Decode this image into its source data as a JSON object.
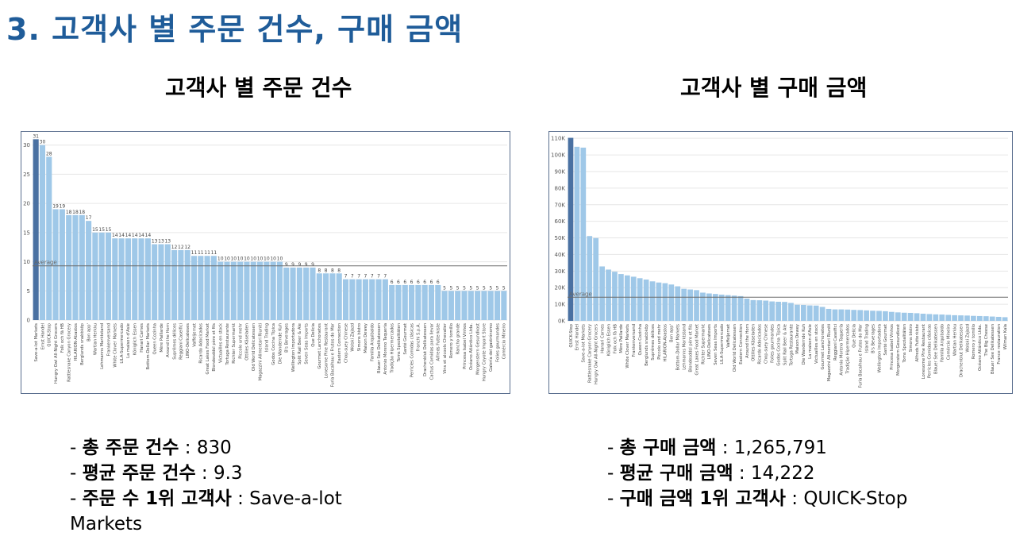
{
  "page": {
    "title": "3. 고객사 별 주문 건수, 구매 금액"
  },
  "left": {
    "chart_title": "고객사 별 주문 건수",
    "summary": [
      {
        "label": "총 주문 건수",
        "value": "830"
      },
      {
        "label": "평균 주문 건수",
        "value": "9.3"
      },
      {
        "label": "주문 수 1위 고객사",
        "value": "Save-a-lot Markets"
      }
    ]
  },
  "right": {
    "chart_title": "고객사 별 구매 금액",
    "summary": [
      {
        "label": "총 구매 금액",
        "value": "1,265,791"
      },
      {
        "label": "평균 구매 금액",
        "value": "14,222"
      },
      {
        "label": "구매 금액 1위 고객사",
        "value": "QUICK-Stop"
      }
    ]
  },
  "chart_data": [
    {
      "type": "bar",
      "title": "고객사 별 주문 건수",
      "ylim": [
        0,
        32
      ],
      "yticks": [
        0,
        5,
        10,
        15,
        20,
        25,
        30
      ],
      "ytick_labels": [
        "0",
        "5",
        "10",
        "15",
        "20",
        "25",
        "30"
      ],
      "reference_line": {
        "label": "Average",
        "value": 9.3
      },
      "highlight_index": 0,
      "colors": {
        "bar": "#9fc8e8",
        "highlight": "#4a71a2",
        "grid": "#e6e6e6"
      },
      "show_value_labels": true,
      "categories": [
        "Save-a-lot Markets",
        "Ernst Handel",
        "QUICK-Stop",
        "Hungry Owl All-Night Grocers",
        "Folk och fä HB",
        "Rattlesnake Canyon Grocery",
        "HILARION-Abastos",
        "Berglunds snabbköp",
        "Bon app'",
        "Wartian Herkku",
        "Lehmanns Marktstand",
        "Frankenversand",
        "White Clover Markets",
        "LILA-Supermercado",
        "La maison d'Asie",
        "Königlich Essen",
        "Hanari Carnes",
        "Bottom-Dollar Markets",
        "Queen Cozinha",
        "Mère Paillarde",
        "Around the Horn",
        "Suprêmes délices",
        "Reggiani Caseifici",
        "LINO-Delicateses",
        "Vaffeljernet",
        "Ricardo Adocicados",
        "Great Lakes Food Market",
        "Blondesddsl père et fils",
        "Victuailles en stock",
        "Tortuga Restaurante",
        "Richter Supermarkt",
        "Piccolo und mehr",
        "Ottilies Käseladen",
        "Old World Delicatessen",
        "Magazzini Alimentari Riuniti",
        "Island Trading",
        "Godos Cocina Típica",
        "Die Wandernde Kuh",
        "B's Beverages",
        "Wellington Importadora",
        "Split Rail Beer & Ale",
        "Seven Seas Imports",
        "Que Delícia",
        "Gourmet Lanchonetes",
        "Lonesome Pine Restaurant",
        "Furia Bacalhau e Frutos do Mar",
        "Eastern Connection",
        "Chop-suey Chinese",
        "Wolski Zajazd",
        "Simons bistro",
        "Maison Dewey",
        "Familia Arquibaldo",
        "Blauer See Delikatessen",
        "Antonio Moreno Taquería",
        "Tradição Hipermercados",
        "Toms Spezialitäten",
        "Santé Gourmet",
        "Perricles Comidas clásicas",
        "Franchi S.p.A.",
        "Drachenblut Delikatessen",
        "Cactus Comidas para llevar",
        "Alfreds Futterkiste",
        "Vins et alcools Chevalier",
        "Romero y tomillo",
        "Rancho grande",
        "Princesa Isabel Vinhos",
        "Océano Atlántico Ltda.",
        "Morgenstern Gesundkost",
        "Hungry Coyote Import Store",
        "Galería del gastrónomo",
        "Folies gourmandes",
        "Comércio Mineiro"
      ],
      "values": [
        31,
        30,
        28,
        19,
        19,
        18,
        18,
        18,
        17,
        15,
        15,
        15,
        14,
        14,
        14,
        14,
        14,
        14,
        13,
        13,
        13,
        12,
        12,
        12,
        11,
        11,
        11,
        11,
        10,
        10,
        10,
        10,
        10,
        10,
        10,
        10,
        10,
        10,
        9,
        9,
        9,
        9,
        9,
        8,
        8,
        8,
        8,
        7,
        7,
        7,
        7,
        7,
        7,
        7,
        6,
        6,
        6,
        6,
        6,
        6,
        6,
        6,
        5,
        5,
        5,
        5,
        5,
        5,
        5,
        5,
        5,
        5
      ]
    },
    {
      "type": "bar",
      "title": "고객사 별 구매 금액",
      "ylim": [
        0,
        112000
      ],
      "yticks": [
        0,
        10000,
        20000,
        30000,
        40000,
        50000,
        60000,
        70000,
        80000,
        90000,
        100000,
        110000
      ],
      "ytick_labels": [
        "0K",
        "10K",
        "20K",
        "30K",
        "40K",
        "50K",
        "60K",
        "70K",
        "80K",
        "90K",
        "100K",
        "110K"
      ],
      "reference_line": {
        "label": "Average",
        "value": 14222
      },
      "highlight_index": 0,
      "colors": {
        "bar": "#9fc8e8",
        "highlight": "#4a71a2",
        "grid": "#e6e6e6"
      },
      "show_value_labels": false,
      "categories": [
        "QUICK-Stop",
        "Ernst Handel",
        "Save-a-lot Markets",
        "Rattlesnake Canyon Grocery",
        "Hungry Owl All-Night Grocers",
        "Hanari Carnes",
        "Königlich Essen",
        "Folk och fä HB",
        "Mère Paillarde",
        "White Clover Markets",
        "Frankenversand",
        "Queen Cozinha",
        "Berglunds snabbköp",
        "Suprêmes délices",
        "Piccolo und mehr",
        "HILARION-Abastos",
        "Bon app'",
        "Bottom-Dollar Markets",
        "Lehmanns Marktstand",
        "Blondesddsl père et fils",
        "Great Lakes Food Market",
        "Richter Supermarkt",
        "LINO-Delicateses",
        "Seven Seas Imports",
        "LILA-Supermercado",
        "Vaffeljernet",
        "Old World Delicatessen",
        "Eastern Connection",
        "Around the Horn",
        "Ottilies Käseladen",
        "Ricardo Adocicados",
        "Chop-suey Chinese",
        "Folies gourmandes",
        "Godos Cocina Típica",
        "Split Rail Beer & Ale",
        "Tortuga Restaurante",
        "Maison Dewey",
        "Die Wandernde Kuh",
        "La maison d'Asie",
        "Victuailles en stock",
        "Gourmet Lanchonetes",
        "Magazzini Alimentari Riuniti",
        "Reggiani Caseifici",
        "Antonio Moreno Taquería",
        "Tradição Hipermercados",
        "Que Delícia",
        "Furia Bacalhau e Frutos do Mar",
        "Island Trading",
        "B's Beverages",
        "Wellington Importadora",
        "Santé Gourmet",
        "Princesa Isabel Vinhos",
        "Morgenstern Gesundkost",
        "Toms Spezialitäten",
        "Simons bistro",
        "Alfreds Futterkiste",
        "Lonesome Pine Restaurant",
        "Perricles Comidas clásicas",
        "Blauer See Delikatessen",
        "Familia Arquibaldo",
        "Comércio Mineiro",
        "Wartian Herkku",
        "Drachenblut Delikatessen",
        "Wolski Zajazd",
        "Romero y tomillo",
        "Océano Atlántico Ltda.",
        "The Big Cheese",
        "Blauer See Delikatessen",
        "France restauration",
        "Wilman Kala"
      ],
      "values": [
        110300,
        104900,
        104400,
        51100,
        49900,
        32800,
        30900,
        29600,
        28200,
        27400,
        26600,
        25700,
        24900,
        23800,
        23100,
        22700,
        21900,
        20800,
        19300,
        18900,
        18500,
        17000,
        16500,
        16200,
        15800,
        15500,
        15200,
        14900,
        13400,
        12500,
        12400,
        12200,
        11700,
        11500,
        11400,
        10800,
        9700,
        9600,
        9300,
        9200,
        8400,
        7200,
        6900,
        6900,
        6800,
        6600,
        6500,
        6300,
        6100,
        6000,
        5800,
        5400,
        5100,
        4900,
        4800,
        4600,
        4300,
        4100,
        3900,
        3800,
        3600,
        3400,
        3300,
        3200,
        3000,
        2900,
        2800,
        2600,
        2400,
        2200
      ]
    }
  ]
}
